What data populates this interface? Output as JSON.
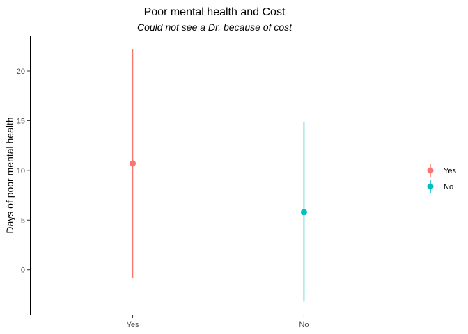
{
  "chart_data": {
    "type": "pointrange",
    "title": "Poor mental health and Cost",
    "subtitle": "Could not see a Dr. because of cost",
    "xlabel": "",
    "ylabel": "Days of poor mental health",
    "categories": [
      "Yes",
      "No"
    ],
    "series": [
      {
        "name": "Yes",
        "category": "Yes",
        "mean": 10.7,
        "low": -0.8,
        "high": 22.2,
        "color": "#F8766D"
      },
      {
        "name": "No",
        "category": "No",
        "mean": 5.8,
        "low": -3.2,
        "high": 14.9,
        "color": "#00BFC4"
      }
    ],
    "yticks": [
      0,
      5,
      10,
      15,
      20
    ],
    "ylim": [
      -4.5,
      23.5
    ],
    "grid": false,
    "legend_position": "right"
  }
}
